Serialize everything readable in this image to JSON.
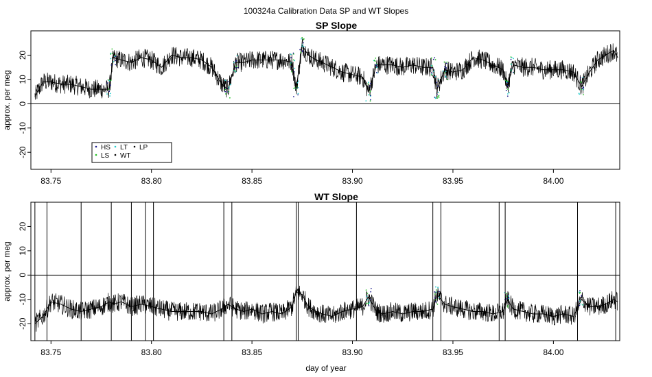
{
  "chart_data": {
    "title": "100324a   Calibration Data SP and WT Slopes",
    "xlabel": "day of year",
    "xlim": [
      83.74,
      84.033
    ],
    "x_ticks": [
      "83.75",
      "83.80",
      "83.85",
      "83.90",
      "83.95",
      "84.00"
    ],
    "legend": {
      "placement": "bottom-left",
      "entries": [
        {
          "label": "HS",
          "color": "#1a1a8c"
        },
        {
          "label": "LT",
          "color": "#22cccc"
        },
        {
          "label": "LP",
          "color": "#000000"
        },
        {
          "label": "LS",
          "color": "#22c022"
        },
        {
          "label": "WT",
          "color": "#000000"
        }
      ]
    },
    "panels": [
      {
        "type": "line",
        "title": "SP Slope",
        "ylabel": "approx. per meg",
        "ylim": [
          -27,
          30
        ],
        "y_ticks": [
          "20",
          "10",
          "0",
          "-10",
          "-20"
        ],
        "hline": 0,
        "series": [
          {
            "color": "#000000",
            "x": [
              83.742,
              83.746,
              83.75,
              83.755,
              83.76,
              83.765,
              83.77,
              83.775,
              83.779,
              83.781,
              83.785,
              83.79,
              83.795,
              83.8,
              83.805,
              83.81,
              83.815,
              83.82,
              83.825,
              83.83,
              83.835,
              83.838,
              83.842,
              83.846,
              83.85,
              83.855,
              83.86,
              83.865,
              83.87,
              83.872,
              83.875,
              83.878,
              83.882,
              83.885,
              83.89,
              83.895,
              83.9,
              83.905,
              83.908,
              83.912,
              83.915,
              83.92,
              83.925,
              83.93,
              83.935,
              83.94,
              83.942,
              83.946,
              83.95,
              83.955,
              83.96,
              83.965,
              83.97,
              83.975,
              83.977,
              83.98,
              83.985,
              83.99,
              83.995,
              84.0,
              84.005,
              84.01,
              84.014,
              84.018,
              84.022,
              84.026,
              84.03,
              84.032
            ],
            "values": [
              3,
              9,
              9,
              8,
              8,
              7,
              6,
              6,
              6,
              19,
              18,
              17,
              19,
              18,
              15,
              20,
              19,
              19,
              18,
              15,
              8,
              6,
              17,
              17,
              18,
              18,
              18,
              18,
              17,
              6,
              24,
              20,
              18,
              17,
              15,
              13,
              12,
              11,
              5,
              16,
              16,
              16,
              15,
              16,
              15,
              15,
              6,
              14,
              13,
              14,
              19,
              18,
              16,
              14,
              7,
              16,
              15,
              15,
              14,
              14,
              14,
              13,
              7,
              13,
              18,
              20,
              22,
              19
            ]
          }
        ]
      },
      {
        "type": "line",
        "title": "WT Slope",
        "ylabel": "approx. per meg",
        "ylim": [
          -27,
          30
        ],
        "y_ticks": [
          "20",
          "10",
          "0",
          "-10",
          "-20"
        ],
        "hline": 0,
        "series": [
          {
            "color": "#000000",
            "x": [
              83.742,
              83.746,
              83.75,
              83.755,
              83.76,
              83.765,
              83.77,
              83.775,
              83.779,
              83.781,
              83.785,
              83.79,
              83.795,
              83.8,
              83.805,
              83.81,
              83.815,
              83.82,
              83.825,
              83.83,
              83.835,
              83.838,
              83.842,
              83.846,
              83.85,
              83.855,
              83.86,
              83.865,
              83.87,
              83.872,
              83.875,
              83.878,
              83.882,
              83.885,
              83.89,
              83.895,
              83.9,
              83.905,
              83.908,
              83.912,
              83.915,
              83.92,
              83.925,
              83.93,
              83.935,
              83.94,
              83.942,
              83.946,
              83.95,
              83.955,
              83.96,
              83.965,
              83.97,
              83.975,
              83.977,
              83.98,
              83.985,
              83.99,
              83.995,
              84.0,
              84.005,
              84.01,
              84.014,
              84.018,
              84.022,
              84.026,
              84.03,
              84.032
            ],
            "values": [
              -20,
              -17,
              -11,
              -12,
              -14,
              -15,
              -14,
              -13,
              -11,
              -12,
              -11,
              -13,
              -12,
              -13,
              -14,
              -15,
              -15,
              -15,
              -15,
              -16,
              -14,
              -12,
              -14,
              -15,
              -14,
              -16,
              -15,
              -16,
              -13,
              -7,
              -8,
              -13,
              -15,
              -16,
              -17,
              -15,
              -14,
              -13,
              -9,
              -15,
              -16,
              -15,
              -16,
              -15,
              -15,
              -14,
              -8,
              -12,
              -13,
              -14,
              -15,
              -15,
              -16,
              -15,
              -10,
              -14,
              -15,
              -16,
              -16,
              -17,
              -16,
              -17,
              -10,
              -13,
              -13,
              -12,
              -10,
              -11
            ]
          }
        ],
        "spikes": [
          83.742,
          83.748,
          83.765,
          83.78,
          83.79,
          83.797,
          83.801,
          83.836,
          83.84,
          83.872,
          83.873,
          83.902,
          83.94,
          83.944,
          83.973,
          83.976,
          84.012,
          84.031
        ]
      }
    ]
  }
}
